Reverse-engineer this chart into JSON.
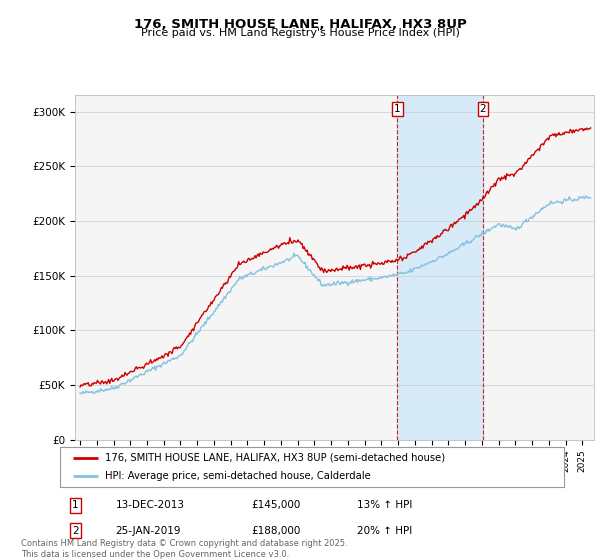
{
  "title": "176, SMITH HOUSE LANE, HALIFAX, HX3 8UP",
  "subtitle": "Price paid vs. HM Land Registry's House Price Index (HPI)",
  "ylabel_ticks": [
    "£0",
    "£50K",
    "£100K",
    "£150K",
    "£200K",
    "£250K",
    "£300K"
  ],
  "ytick_vals": [
    0,
    50000,
    100000,
    150000,
    200000,
    250000,
    300000
  ],
  "ylim": [
    0,
    315000
  ],
  "xlim_start": 1994.7,
  "xlim_end": 2025.7,
  "red_color": "#cc0000",
  "blue_color": "#85c1e0",
  "highlight_fill": "#d6eaf8",
  "dashed_line_color": "#cc0000",
  "legend_label_red": "176, SMITH HOUSE LANE, HALIFAX, HX3 8UP (semi-detached house)",
  "legend_label_blue": "HPI: Average price, semi-detached house, Calderdale",
  "sale1_date": "13-DEC-2013",
  "sale1_price": "£145,000",
  "sale1_hpi": "13% ↑ HPI",
  "sale1_x": 2013.95,
  "sale2_date": "25-JAN-2019",
  "sale2_price": "£188,000",
  "sale2_hpi": "20% ↑ HPI",
  "sale2_x": 2019.07,
  "footer": "Contains HM Land Registry data © Crown copyright and database right 2025.\nThis data is licensed under the Open Government Licence v3.0.",
  "bg_color": "#f5f5f5"
}
